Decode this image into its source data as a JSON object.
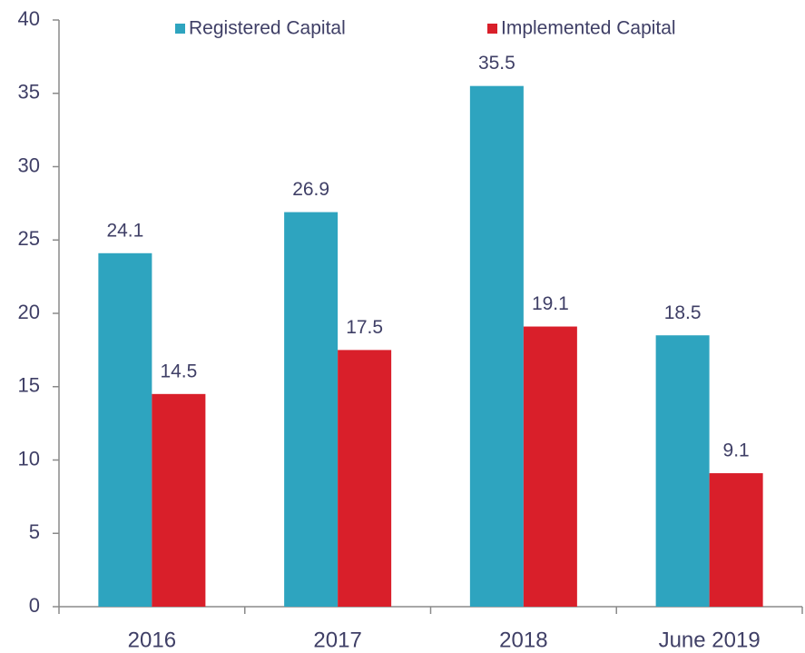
{
  "chart_data": {
    "type": "bar",
    "categories": [
      "2016",
      "2017",
      "2018",
      "June 2019"
    ],
    "series": [
      {
        "name": "Registered Capital",
        "color": "#2ea4bf",
        "values": [
          24.1,
          26.9,
          35.5,
          18.5
        ]
      },
      {
        "name": "Implemented Capital",
        "color": "#d91f2a",
        "values": [
          14.5,
          17.5,
          19.1,
          9.1
        ]
      }
    ],
    "ylim": [
      0,
      40
    ],
    "yticks": [
      0,
      5,
      10,
      15,
      20,
      25,
      30,
      35,
      40
    ],
    "grid": false,
    "legend": "top"
  }
}
